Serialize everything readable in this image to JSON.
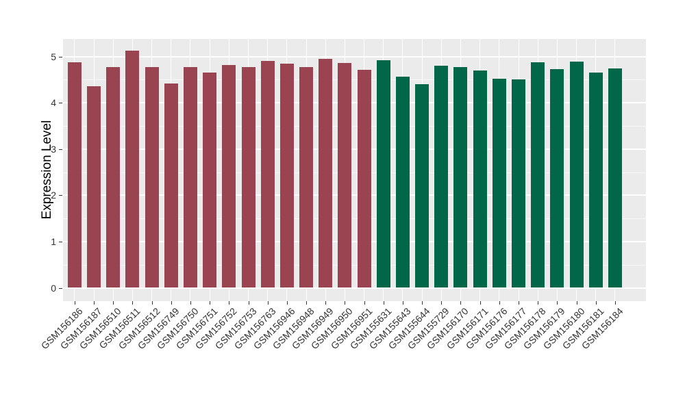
{
  "chart_data": {
    "type": "bar",
    "title": "",
    "xlabel": "",
    "ylabel": "Expression Level",
    "ylim": [
      0,
      5.38
    ],
    "yticks": [
      0,
      1,
      2,
      3,
      4,
      5
    ],
    "minor_gridlines": [
      0.5,
      1.5,
      2.5,
      3.5,
      4.5
    ],
    "grid": "on",
    "legend": "none",
    "x_tick_rotation_deg": 45,
    "panel_background": "#EBEBEB",
    "gridline_color": "#FFFFFF",
    "axis_text_color": "#333333",
    "categories": [
      "GSM156186",
      "GSM156187",
      "GSM156510",
      "GSM156511",
      "GSM156512",
      "GSM156749",
      "GSM156750",
      "GSM156751",
      "GSM156752",
      "GSM156753",
      "GSM156763",
      "GSM156946",
      "GSM156948",
      "GSM156949",
      "GSM156950",
      "GSM156951",
      "GSM155631",
      "GSM155643",
      "GSM155644",
      "GSM155729",
      "GSM156170",
      "GSM156171",
      "GSM156176",
      "GSM156177",
      "GSM156178",
      "GSM156179",
      "GSM156180",
      "GSM156181",
      "GSM156184"
    ],
    "values": [
      4.88,
      4.36,
      4.78,
      5.13,
      4.77,
      4.42,
      4.78,
      4.65,
      4.82,
      4.78,
      4.9,
      4.85,
      4.78,
      4.95,
      4.86,
      4.72,
      4.92,
      4.57,
      4.4,
      4.8,
      4.78,
      4.7,
      4.52,
      4.51,
      4.87,
      4.73,
      4.89,
      4.66,
      4.74
    ],
    "bar_groups": [
      "maroon",
      "maroon",
      "maroon",
      "maroon",
      "maroon",
      "maroon",
      "maroon",
      "maroon",
      "maroon",
      "maroon",
      "maroon",
      "maroon",
      "maroon",
      "maroon",
      "maroon",
      "maroon",
      "green",
      "green",
      "green",
      "green",
      "green",
      "green",
      "green",
      "green",
      "green",
      "green",
      "green",
      "green",
      "green"
    ],
    "group_colors": {
      "maroon": "#9A4452",
      "green": "#016748"
    }
  }
}
